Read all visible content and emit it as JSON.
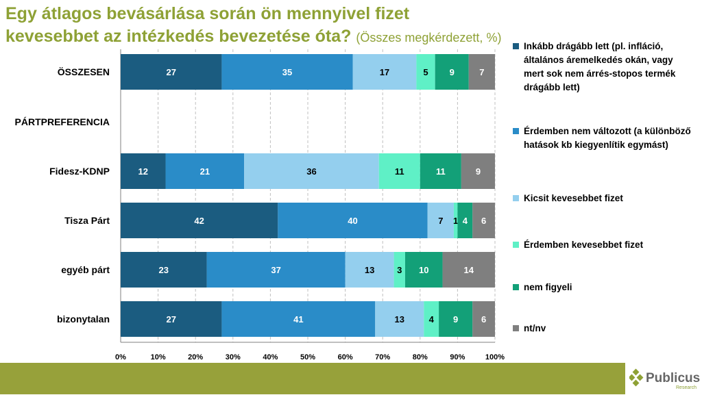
{
  "header": {
    "title": "Egy átlagos bevásárlása során ön mennyivel fizet kevesebbet az intézkedés bevezetése óta?",
    "subtitle": "(Összes megkérdezett, %)"
  },
  "logo": {
    "name": "Publicus",
    "sub": "Research"
  },
  "chart_data": {
    "type": "bar",
    "orientation": "horizontal",
    "stacked": true,
    "title": "Egy átlagos bevásárlása során ön mennyivel fizet kevesebbet az intézkedés bevezetése óta? (Összes megkérdezett, %)",
    "categories": [
      "ÖSSZESEN",
      "PÁRTPREFERENCIA",
      "Fidesz-KDNP",
      "Tisza Párt",
      "egyéb párt",
      "bizonytalan"
    ],
    "series": [
      {
        "name": "Inkább drágább lett (pl. infláció, általános áremelkedés okán, vagy mert sok nem árrés-stopos termék drágább lett)",
        "color": "#1b5c80",
        "values": [
          27,
          null,
          12,
          42,
          23,
          27
        ]
      },
      {
        "name": "Érdemben nem változott (a különböző hatások kb kiegyenlítik egymást)",
        "color": "#2a8cc8",
        "values": [
          35,
          null,
          21,
          40,
          37,
          41
        ]
      },
      {
        "name": "Kicsit kevesebbet fizet",
        "color": "#94cfee",
        "values": [
          17,
          null,
          36,
          7,
          13,
          13
        ]
      },
      {
        "name": "Érdemben kevesebbet fizet",
        "color": "#5ff0c6",
        "values": [
          5,
          null,
          11,
          1,
          3,
          4
        ]
      },
      {
        "name": "nem figyeli",
        "color": "#13a078",
        "values": [
          9,
          null,
          11,
          4,
          10,
          9
        ]
      },
      {
        "name": "nt/nv",
        "color": "#7f7f7f",
        "values": [
          7,
          null,
          9,
          6,
          14,
          6
        ]
      }
    ],
    "xticks": [
      "0%",
      "10%",
      "20%",
      "30%",
      "40%",
      "50%",
      "60%",
      "70%",
      "80%",
      "90%",
      "100%"
    ],
    "xlim": [
      0,
      100
    ],
    "grid": true,
    "legend": "right"
  }
}
